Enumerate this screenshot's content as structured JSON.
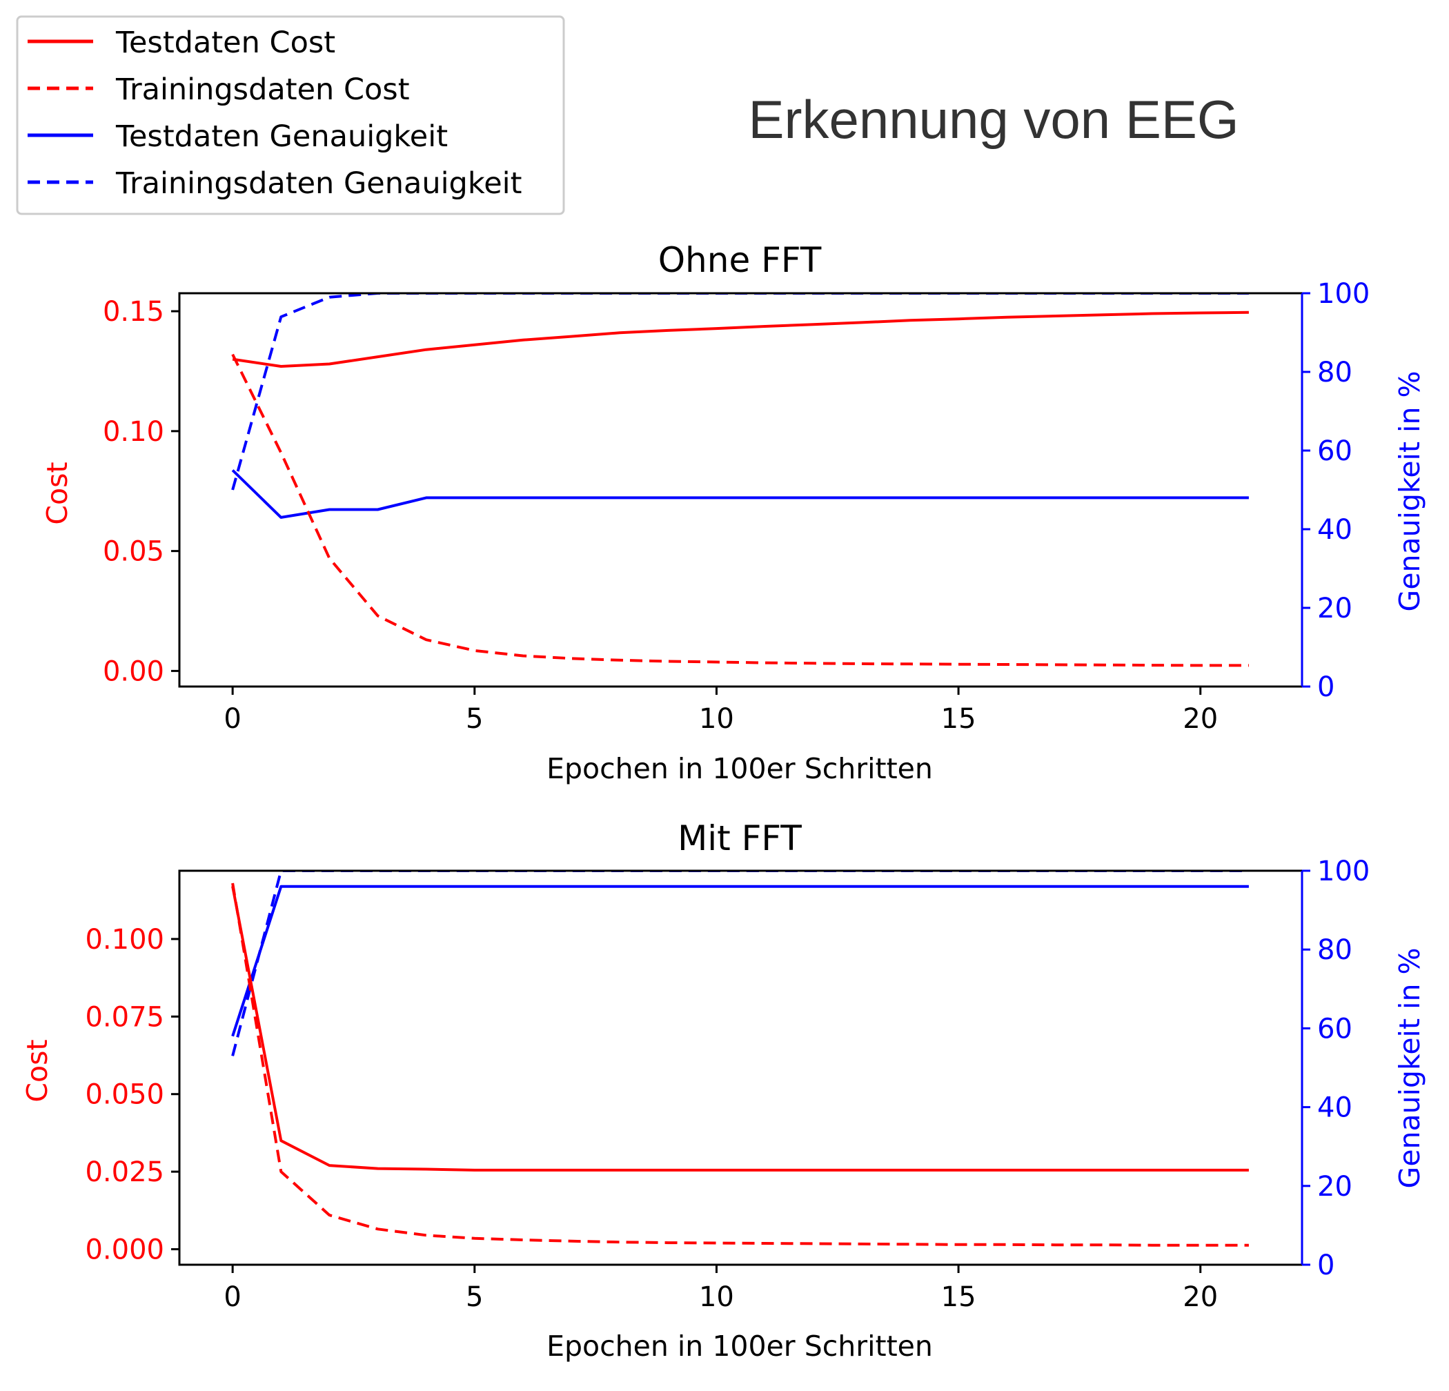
{
  "figure_title": "Erkennung von EEG",
  "colors": {
    "cost": "#ff0000",
    "accuracy": "#0000ff",
    "text": "#000000",
    "title": "#333333"
  },
  "legend": {
    "placement": "upper-left",
    "entries": [
      {
        "label": "Testdaten Cost",
        "color": "#ff0000",
        "style": "solid"
      },
      {
        "label": "Trainingsdaten Cost",
        "color": "#ff0000",
        "style": "dashed"
      },
      {
        "label": "Testdaten Genauigkeit",
        "color": "#0000ff",
        "style": "solid"
      },
      {
        "label": "Trainingsdaten Genauigkeit",
        "color": "#0000ff",
        "style": "dashed"
      }
    ]
  },
  "chart_data": [
    {
      "type": "line",
      "title": "Ohne FFT",
      "xlabel": "Epochen in 100er Schritten",
      "ylabel_left": "Cost",
      "ylabel_right": "Genauigkeit in %",
      "xlim": [
        -1.1,
        22.1
      ],
      "ylim_left": [
        -0.0065,
        0.1575
      ],
      "ylim_right": [
        0,
        100
      ],
      "xticks": [
        0,
        5,
        10,
        15,
        20
      ],
      "yticks_left": [
        "0.00",
        "0.05",
        "0.10",
        "0.15"
      ],
      "yticks_right": [
        "0",
        "20",
        "40",
        "60",
        "80",
        "100"
      ],
      "x": [
        0,
        1,
        2,
        3,
        4,
        5,
        6,
        7,
        8,
        9,
        10,
        11,
        12,
        13,
        14,
        15,
        16,
        17,
        18,
        19,
        20,
        21
      ],
      "series": [
        {
          "name": "Testdaten Cost",
          "axis": "left",
          "color": "#ff0000",
          "style": "solid",
          "values": [
            0.13,
            0.127,
            0.128,
            0.131,
            0.134,
            0.136,
            0.138,
            0.1395,
            0.141,
            0.142,
            0.1428,
            0.1437,
            0.1445,
            0.1453,
            0.1462,
            0.1468,
            0.1475,
            0.148,
            0.1485,
            0.149,
            0.1493,
            0.1495
          ]
        },
        {
          "name": "Trainingsdaten Cost",
          "axis": "left",
          "color": "#ff0000",
          "style": "dashed",
          "values": [
            0.132,
            0.091,
            0.047,
            0.023,
            0.013,
            0.0085,
            0.0063,
            0.0052,
            0.0045,
            0.004,
            0.0037,
            0.0034,
            0.0032,
            0.003,
            0.0029,
            0.0028,
            0.0027,
            0.0026,
            0.0025,
            0.0024,
            0.0023,
            0.0023
          ]
        },
        {
          "name": "Testdaten Genauigkeit",
          "axis": "right",
          "color": "#0000ff",
          "style": "solid",
          "values": [
            55,
            43,
            45,
            45,
            48,
            48,
            48,
            48,
            48,
            48,
            48,
            48,
            48,
            48,
            48,
            48,
            48,
            48,
            48,
            48,
            48,
            48
          ]
        },
        {
          "name": "Trainingsdaten Genauigkeit",
          "axis": "right",
          "color": "#0000ff",
          "style": "dashed",
          "values": [
            50,
            94,
            99,
            100,
            100,
            100,
            100,
            100,
            100,
            100,
            100,
            100,
            100,
            100,
            100,
            100,
            100,
            100,
            100,
            100,
            100,
            100
          ]
        }
      ]
    },
    {
      "type": "line",
      "title": "Mit FFT",
      "xlabel": "Epochen in 100er Schritten",
      "ylabel_left": "Cost",
      "ylabel_right": "Genauigkeit in %",
      "xlim": [
        -1.1,
        22.1
      ],
      "ylim_left": [
        -0.005,
        0.122
      ],
      "ylim_right": [
        0,
        100
      ],
      "xticks": [
        0,
        5,
        10,
        15,
        20
      ],
      "yticks_left": [
        "0.000",
        "0.025",
        "0.050",
        "0.075",
        "0.100"
      ],
      "yticks_right": [
        "0",
        "20",
        "40",
        "60",
        "80",
        "100"
      ],
      "x": [
        0,
        1,
        2,
        3,
        4,
        5,
        6,
        7,
        8,
        9,
        10,
        11,
        12,
        13,
        14,
        15,
        16,
        17,
        18,
        19,
        20,
        21
      ],
      "series": [
        {
          "name": "Testdaten Cost",
          "axis": "left",
          "color": "#ff0000",
          "style": "solid",
          "values": [
            0.117,
            0.035,
            0.027,
            0.026,
            0.0258,
            0.0255,
            0.0255,
            0.0255,
            0.0255,
            0.0255,
            0.0255,
            0.0255,
            0.0255,
            0.0255,
            0.0255,
            0.0255,
            0.0255,
            0.0255,
            0.0255,
            0.0255,
            0.0255,
            0.0255
          ]
        },
        {
          "name": "Trainingsdaten Cost",
          "axis": "left",
          "color": "#ff0000",
          "style": "dashed",
          "values": [
            0.118,
            0.025,
            0.011,
            0.0065,
            0.0045,
            0.0035,
            0.003,
            0.0026,
            0.0023,
            0.0021,
            0.002,
            0.0019,
            0.0018,
            0.0017,
            0.0016,
            0.0015,
            0.0015,
            0.0014,
            0.0014,
            0.0013,
            0.0013,
            0.0013
          ]
        },
        {
          "name": "Testdaten Genauigkeit",
          "axis": "right",
          "color": "#0000ff",
          "style": "solid",
          "values": [
            58,
            96,
            96,
            96,
            96,
            96,
            96,
            96,
            96,
            96,
            96,
            96,
            96,
            96,
            96,
            96,
            96,
            96,
            96,
            96,
            96,
            96
          ]
        },
        {
          "name": "Trainingsdaten Genauigkeit",
          "axis": "right",
          "color": "#0000ff",
          "style": "dashed",
          "values": [
            53,
            100,
            100,
            100,
            100,
            100,
            100,
            100,
            100,
            100,
            100,
            100,
            100,
            100,
            100,
            100,
            100,
            100,
            100,
            100,
            100,
            100
          ]
        }
      ]
    }
  ]
}
